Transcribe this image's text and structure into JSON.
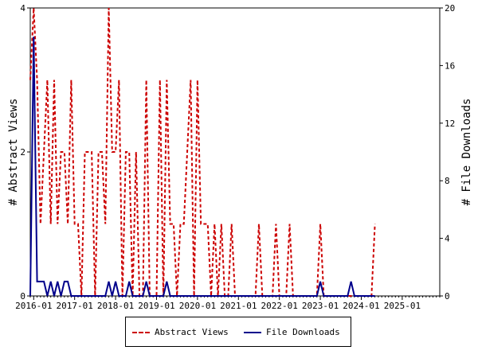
{
  "chart_data": {
    "type": "line",
    "xlabel": "",
    "ylabel_left": "# Abstract Views",
    "ylabel_right": "# File Downloads",
    "ylim_left": [
      0,
      4
    ],
    "ylim_right": [
      0,
      20
    ],
    "yticks_left": [
      0,
      2,
      4
    ],
    "yticks_right": [
      0,
      4,
      8,
      12,
      16,
      20
    ],
    "x_tick_labels": [
      "2016-01",
      "2017-01",
      "2018-01",
      "2019-01",
      "2020-01",
      "2021-01",
      "2022-01",
      "2023-01",
      "2024-01",
      "2025-01"
    ],
    "x_start": "2015-12",
    "x_end": "2025-12",
    "grid": false,
    "legend_position": "bottom",
    "series": [
      {
        "name": "Abstract Views",
        "axis": "left",
        "color": "#cc0000",
        "style": "dashed",
        "values": [
          3,
          4,
          3,
          1,
          2,
          3,
          1,
          3,
          1,
          2,
          2,
          1,
          3,
          1,
          1,
          0,
          2,
          2,
          2,
          0,
          2,
          2,
          1,
          4,
          2,
          2,
          3,
          0,
          2,
          2,
          0,
          2,
          0,
          0,
          3,
          0,
          0,
          0,
          3,
          0,
          3,
          1,
          1,
          0,
          1,
          1,
          2,
          3,
          0,
          3,
          1,
          1,
          1,
          0,
          1,
          0,
          1,
          0,
          0,
          1,
          0,
          0,
          0,
          0,
          0,
          0,
          0,
          1,
          0,
          0,
          0,
          0,
          1,
          0,
          0,
          0,
          1,
          0,
          0,
          0,
          0,
          0,
          0,
          0,
          0,
          1,
          0,
          0,
          0,
          0,
          0,
          0,
          0,
          0,
          0,
          0,
          0,
          0,
          0,
          0,
          0,
          1
        ]
      },
      {
        "name": "File Downloads",
        "axis": "right",
        "color": "#00008b",
        "style": "solid",
        "values": [
          0,
          18,
          1,
          1,
          1,
          0,
          1,
          0,
          1,
          0,
          1,
          1,
          0,
          0,
          0,
          0,
          0,
          0,
          0,
          0,
          0,
          0,
          0,
          1,
          0,
          1,
          0,
          0,
          0,
          1,
          0,
          0,
          0,
          0,
          1,
          0,
          0,
          0,
          0,
          0,
          1,
          0,
          0,
          0,
          0,
          0,
          0,
          0,
          0,
          0,
          0,
          0,
          0,
          0,
          0,
          0,
          0,
          0,
          0,
          0,
          0,
          0,
          0,
          0,
          0,
          0,
          0,
          0,
          0,
          0,
          0,
          0,
          0,
          0,
          0,
          0,
          0,
          0,
          0,
          0,
          0,
          0,
          0,
          0,
          0,
          1,
          0,
          0,
          0,
          0,
          0,
          0,
          0,
          0,
          1,
          0,
          0,
          0,
          0,
          0,
          0,
          0
        ]
      }
    ]
  },
  "legend": {
    "abstract_label": "Abstract Views",
    "download_label": "File Downloads"
  }
}
